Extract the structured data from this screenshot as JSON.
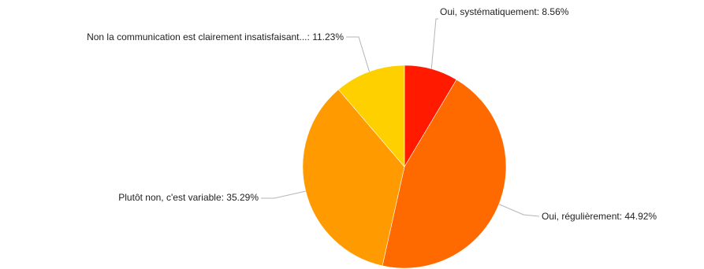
{
  "chart_data": {
    "type": "pie",
    "title": "",
    "slices": [
      {
        "label": "Oui, systématiquement: 8.56%",
        "value": 8.56,
        "color": "#ff1a00"
      },
      {
        "label": "Oui, régulièrement: 44.92%",
        "value": 44.92,
        "color": "#ff6a00"
      },
      {
        "label": "Plutôt non, c'est variable: 35.29%",
        "value": 35.29,
        "color": "#ff9a00"
      },
      {
        "label": "Non la communication est clairement insatisfaisant...: 11.23%",
        "value": 11.23,
        "color": "#ffd000"
      }
    ],
    "start_angle_deg": 0,
    "direction": "clockwise",
    "legend": "none",
    "labels": "outside-with-leader-lines"
  }
}
